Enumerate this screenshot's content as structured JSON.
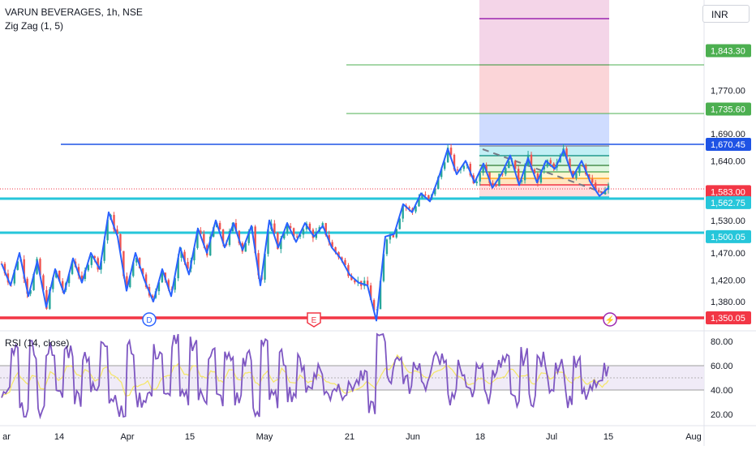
{
  "header": {
    "title": "VARUN BEVERAGES, 1h, NSE",
    "indicator": "Zig Zag (1, 5)",
    "currency": "INR",
    "rsi_label": "RSI (14, close)"
  },
  "colors": {
    "candle_up": "#26a69a",
    "candle_down": "#ef5350",
    "zigzag": "#2962ff",
    "level_blue": "#1e53e5",
    "level_cyan": "#26c6da",
    "level_red": "#f23645",
    "level_green": "#4caf50",
    "rsi_line": "#7e57c2",
    "rsi_ma": "#f5e663"
  },
  "chart_data": [
    {
      "type": "candlestick",
      "symbol": "VARUN BEVERAGES",
      "interval": "1h",
      "exchange": "NSE",
      "x_ticks": [
        "ar",
        "14",
        "Apr",
        "15",
        "May",
        "21",
        "Jun",
        "18",
        "Jul",
        "15",
        "Aug"
      ],
      "y_ticks": [
        1380.0,
        1420.0,
        1470.0,
        1530.0,
        1583.0,
        1640.0,
        1690.0,
        1770.0
      ],
      "ylim": [
        1330,
        1880
      ],
      "price_labels": [
        {
          "value": 1843.3,
          "label": "1,843.30",
          "color": "#4caf50"
        },
        {
          "value": 1735.6,
          "label": "1,735.60",
          "color": "#4caf50"
        },
        {
          "value": 1670.45,
          "label": "1,670.45",
          "color": "#1e53e5"
        },
        {
          "value": 1583.0,
          "label": "1,583.00",
          "color": "#f23645"
        },
        {
          "value": 1562.75,
          "label": "1,562.75",
          "color": "#26c6da"
        },
        {
          "value": 1500.05,
          "label": "1,500.05",
          "color": "#26c6da"
        },
        {
          "value": 1350.05,
          "label": "1,350.05",
          "color": "#f23645"
        }
      ],
      "hidden_tick_labels": [
        "1,583.00",
        "1,350.05"
      ],
      "event_markers": [
        "D",
        "E",
        "⚡"
      ],
      "zigzag_close": [
        1450,
        1410,
        1470,
        1390,
        1455,
        1370,
        1440,
        1395,
        1460,
        1415,
        1470,
        1440,
        1545,
        1500,
        1400,
        1470,
        1420,
        1380,
        1440,
        1390,
        1480,
        1430,
        1515,
        1470,
        1530,
        1480,
        1525,
        1475,
        1520,
        1410,
        1530,
        1480,
        1525,
        1490,
        1525,
        1500,
        1520,
        1480,
        1460,
        1430,
        1415,
        1410,
        1345,
        1500,
        1505,
        1560,
        1545,
        1580,
        1565,
        1610,
        1662,
        1615,
        1640,
        1600,
        1635,
        1590,
        1615,
        1650,
        1595,
        1645,
        1600,
        1640,
        1625,
        1660,
        1610,
        1640,
        1600,
        1575,
        1590
      ]
    },
    {
      "type": "line",
      "name": "RSI (14, close)",
      "y_ticks": [
        20.0,
        40.0,
        60.0,
        80.0
      ],
      "ylim": [
        15,
        90
      ],
      "band": [
        40,
        60
      ]
    }
  ]
}
